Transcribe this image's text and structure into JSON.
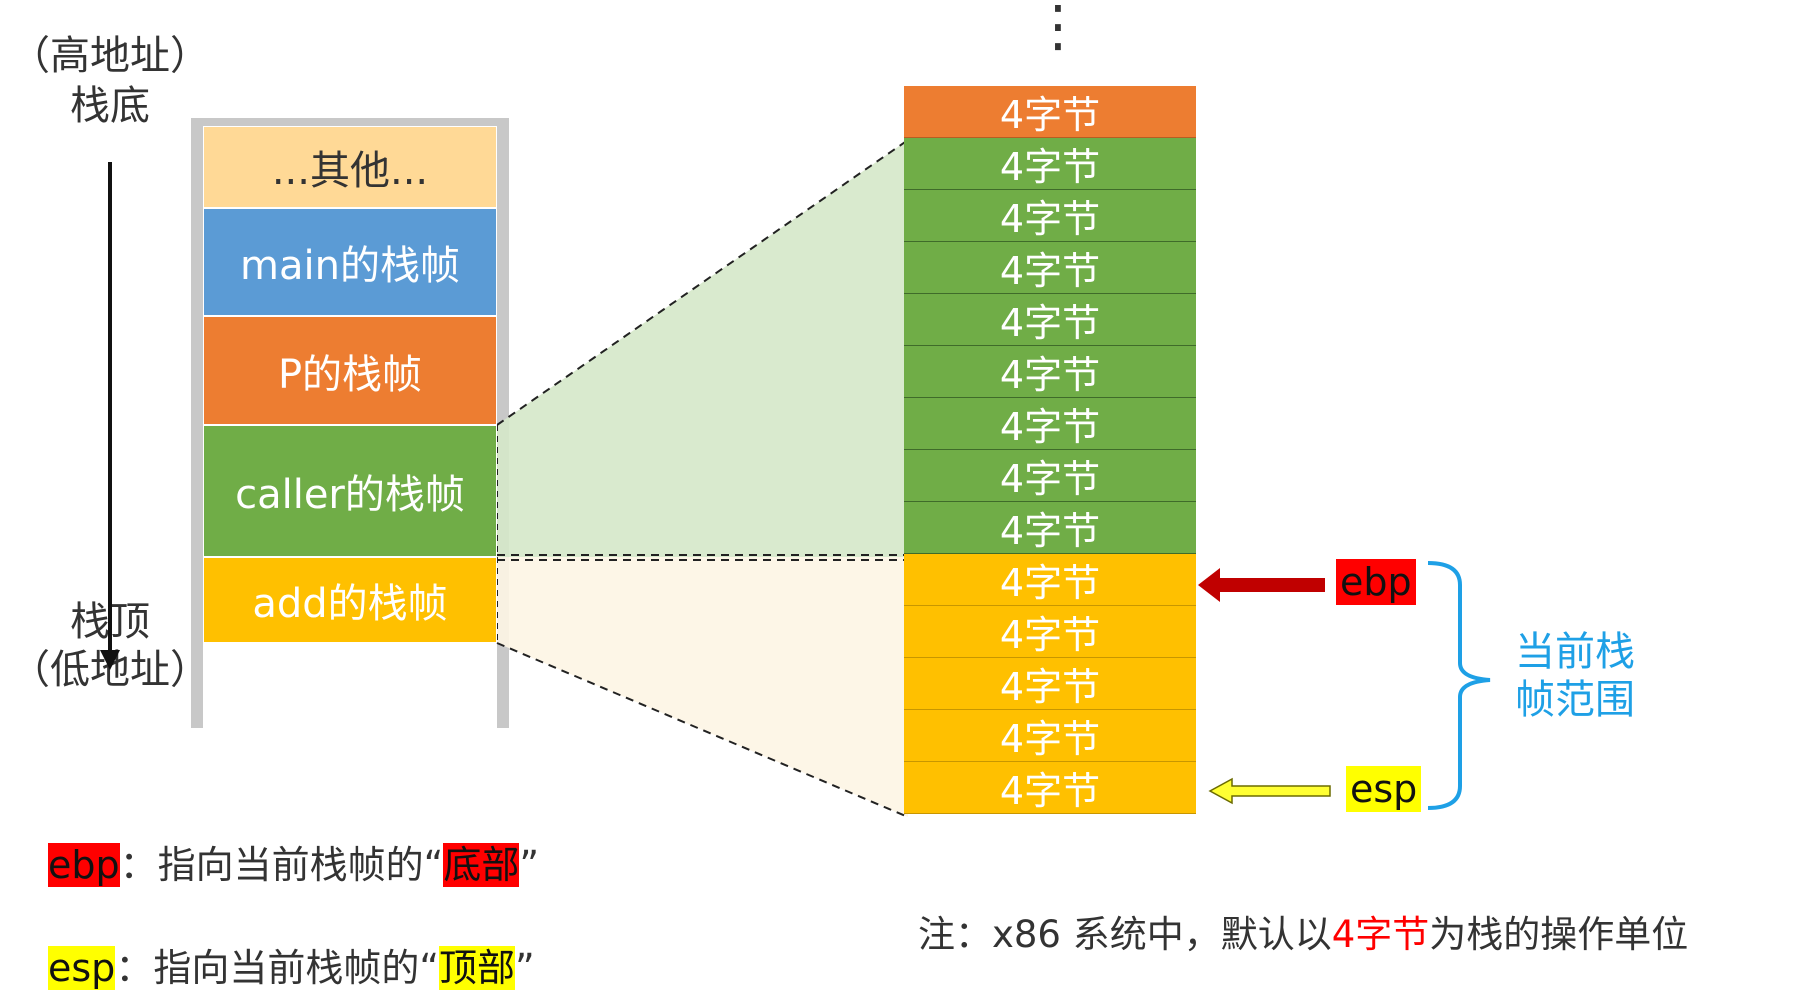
{
  "left_column": {
    "top_label_line1": "（高地址）",
    "top_label_line2": "栈底",
    "bottom_label_line1": "栈顶",
    "bottom_label_line2": "（低地址）"
  },
  "stack_frames": [
    {
      "label": "...其他...",
      "color": "#ffd996"
    },
    {
      "label": "main的栈帧",
      "color": "#5b9bd5"
    },
    {
      "label": "P的栈帧",
      "color": "#ed7d31"
    },
    {
      "label": "caller的栈帧",
      "color": "#70ad47"
    },
    {
      "label": "add的栈帧",
      "color": "#ffc000"
    }
  ],
  "detail_column": {
    "ellipsis": "⋮",
    "cells": [
      {
        "label": "4字节",
        "kind": "orange"
      },
      {
        "label": "4字节",
        "kind": "green"
      },
      {
        "label": "4字节",
        "kind": "green"
      },
      {
        "label": "4字节",
        "kind": "green"
      },
      {
        "label": "4字节",
        "kind": "green"
      },
      {
        "label": "4字节",
        "kind": "green"
      },
      {
        "label": "4字节",
        "kind": "green"
      },
      {
        "label": "4字节",
        "kind": "green"
      },
      {
        "label": "4字节",
        "kind": "green"
      },
      {
        "label": "4字节",
        "kind": "yellow"
      },
      {
        "label": "4字节",
        "kind": "yellow"
      },
      {
        "label": "4字节",
        "kind": "yellow"
      },
      {
        "label": "4字节",
        "kind": "yellow"
      },
      {
        "label": "4字节",
        "kind": "yellow"
      }
    ]
  },
  "pointers": {
    "ebp": "ebp",
    "esp": "esp",
    "range_line1": "当前栈",
    "range_line2": "帧范围"
  },
  "legend": {
    "ebp_tag": "ebp",
    "ebp_text": "：指向当前栈帧的“",
    "ebp_highlight": "底部",
    "ebp_close": "”",
    "esp_tag": "esp",
    "esp_text": "：指向当前栈帧的“",
    "esp_highlight": "顶部",
    "esp_close": "”"
  },
  "note": {
    "prefix": "注：x86 系统中，默认以",
    "highlight": "4字节",
    "suffix": "为栈的操作单位"
  },
  "colors": {
    "ebp_red": "#ff0000",
    "esp_yellow": "#ffff00",
    "range_blue": "#1ea0e6",
    "arrow_dark_red": "#c00000"
  }
}
